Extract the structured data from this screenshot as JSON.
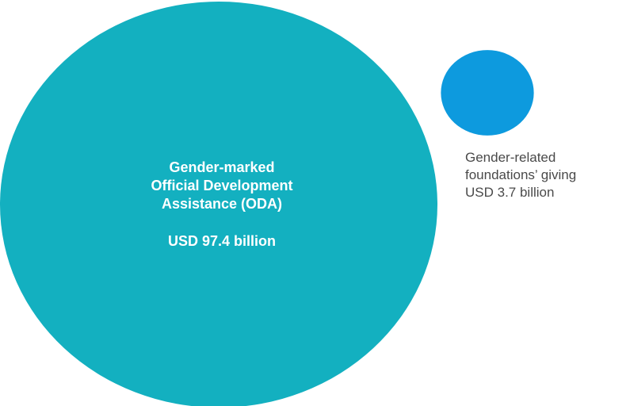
{
  "chart_data": {
    "type": "bubble",
    "series": [
      {
        "label_lines": [
          "Gender-marked",
          "Official Development",
          "Assistance (ODA)"
        ],
        "value_text": "USD 97.4 billion",
        "value": 97.4,
        "unit": "USD billion",
        "color": "#13b0c0"
      },
      {
        "label_lines": [
          "Gender-related",
          "foundations’ giving"
        ],
        "value_text": "USD 3.7 billion",
        "value": 3.7,
        "unit": "USD billion",
        "color": "#0d9ade"
      }
    ],
    "bubble_sizing": "area proportional to value",
    "legend": "none",
    "grid": false
  }
}
